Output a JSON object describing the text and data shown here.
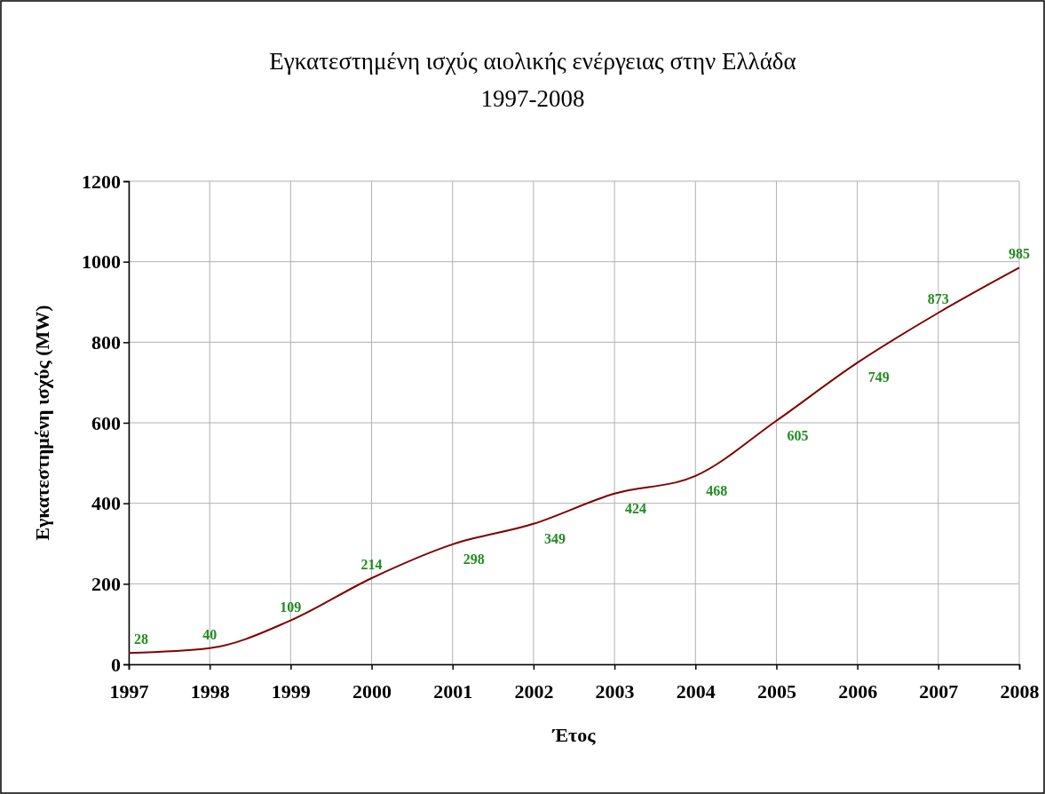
{
  "chart_data": {
    "type": "line",
    "title": "Εγκατεστημένη ισχύς αιολικής ενέργειας στην Ελλάδα",
    "subtitle": "1997-2008",
    "xlabel": "Έτος",
    "ylabel": "Εγκατεστημένη ισχύς (MW)",
    "x": [
      1997,
      1998,
      1999,
      2000,
      2001,
      2002,
      2003,
      2004,
      2005,
      2006,
      2007,
      2008
    ],
    "series": [
      {
        "color": "#800000",
        "values": [
          28,
          40,
          109,
          214,
          298,
          349,
          424,
          468,
          605,
          749,
          873,
          985
        ]
      }
    ],
    "xlim": [
      1997,
      2008
    ],
    "xticks": [
      1997,
      1998,
      1999,
      2000,
      2001,
      2002,
      2003,
      2004,
      2005,
      2006,
      2007,
      2008
    ],
    "ylim": [
      0,
      1200
    ],
    "yticks": [
      0,
      200,
      400,
      600,
      800,
      1000,
      1200
    ],
    "grid": true,
    "marker": "none",
    "line_style": "solid",
    "data_labels": true
  }
}
